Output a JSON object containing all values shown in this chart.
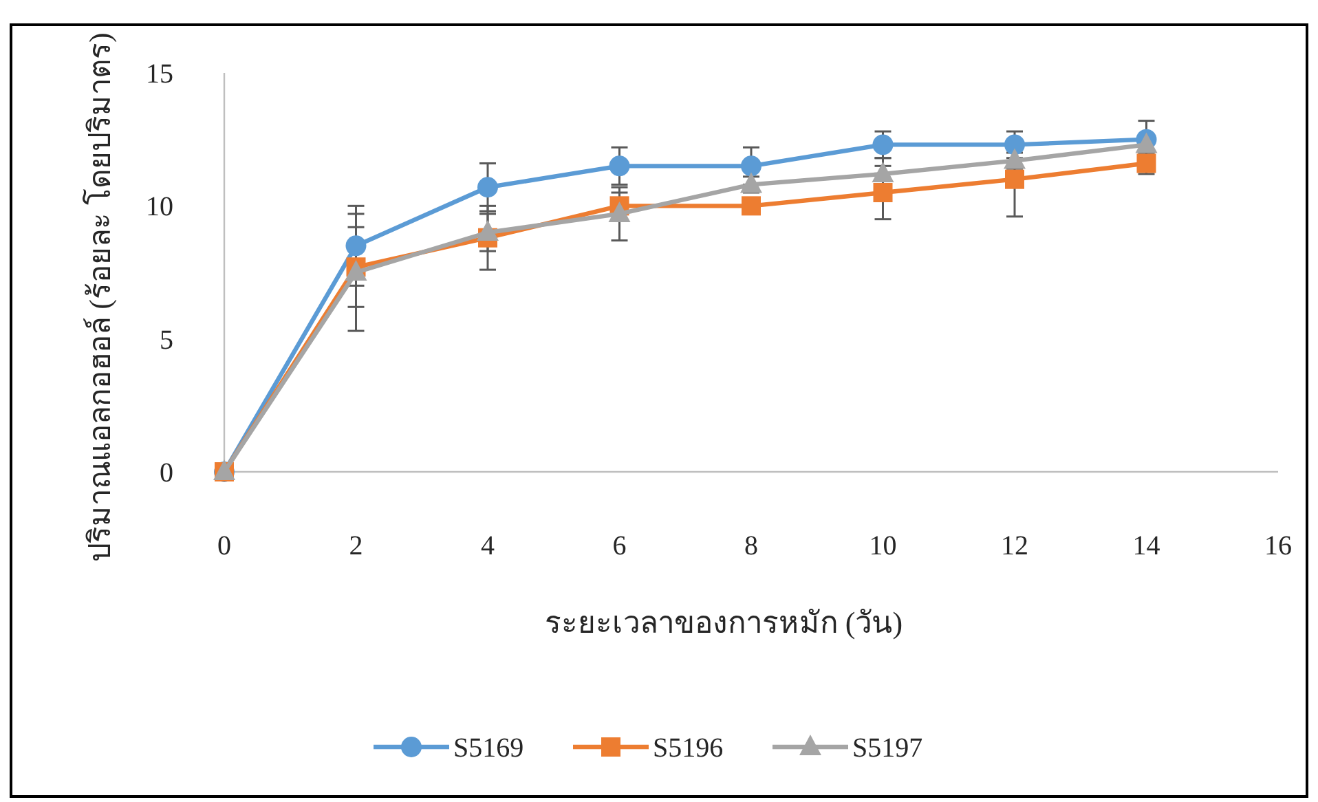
{
  "chart_data": {
    "type": "line",
    "xlabel": "ระยะเวลาของการหมัก (วัน)",
    "ylabel": "ปริมาณแอลกอฮอล์ (ร้อยละ โดยปริมาตร)",
    "x": [
      0,
      2,
      4,
      6,
      8,
      10,
      12,
      14
    ],
    "series": [
      {
        "name": "S5169",
        "color": "#5b9bd5",
        "marker": "circle",
        "values": [
          0,
          8.5,
          10.7,
          11.5,
          11.5,
          12.3,
          12.3,
          12.5
        ],
        "errors": [
          null,
          1.5,
          0.9,
          0.7,
          0.7,
          0.5,
          0.5,
          0.7
        ]
      },
      {
        "name": "S5196",
        "color": "#ed7d31",
        "marker": "square",
        "values": [
          0,
          7.7,
          8.8,
          10.0,
          10.0,
          10.5,
          11.0,
          11.6
        ],
        "errors": [
          null,
          1.5,
          1.2,
          0.5,
          null,
          1.0,
          1.4,
          0.4
        ]
      },
      {
        "name": "S5197",
        "color": "#a5a5a5",
        "marker": "triangle",
        "values": [
          0,
          7.5,
          9.0,
          9.7,
          10.8,
          11.2,
          11.7,
          12.3
        ],
        "errors": [
          null,
          2.2,
          0.7,
          1.0,
          0.3,
          0.6,
          0.3,
          0.3
        ]
      }
    ],
    "xlim": [
      0,
      16
    ],
    "xticks": [
      0,
      2,
      4,
      6,
      8,
      10,
      12,
      14,
      16
    ],
    "ylim": [
      0,
      15
    ],
    "yticks": [
      0,
      5,
      10,
      15
    ],
    "grid": false,
    "legend": "bottom",
    "line_style": "solid"
  }
}
